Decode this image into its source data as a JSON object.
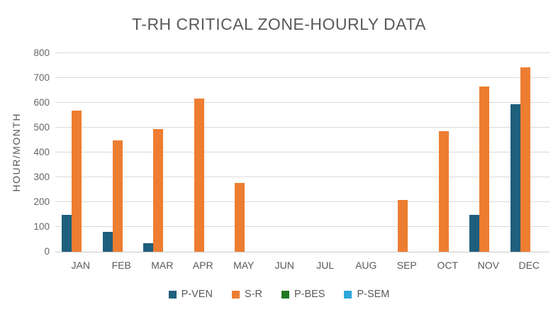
{
  "title": "T-RH CRITICAL ZONE-HOURLY DATA",
  "chart_data": {
    "type": "bar",
    "title": "T-RH CRITICAL ZONE-HOURLY DATA",
    "categories": [
      "JAN",
      "FEB",
      "MAR",
      "APR",
      "MAY",
      "JUN",
      "JUL",
      "AUG",
      "SEP",
      "OCT",
      "NOV",
      "DEC"
    ],
    "series": [
      {
        "name": "P-VEN",
        "color": "#1e5f7c",
        "values": [
          150,
          80,
          35,
          0,
          0,
          0,
          0,
          0,
          0,
          0,
          148,
          595
        ]
      },
      {
        "name": "S-R",
        "color": "#ed7d31",
        "values": [
          570,
          450,
          493,
          618,
          277,
          0,
          0,
          0,
          209,
          486,
          667,
          742
        ]
      },
      {
        "name": "P-BES",
        "color": "#217821",
        "values": [
          0,
          0,
          0,
          0,
          0,
          0,
          0,
          0,
          0,
          0,
          0,
          0
        ]
      },
      {
        "name": "P-SEM",
        "color": "#2ea7db",
        "values": [
          0,
          0,
          0,
          0,
          0,
          0,
          0,
          0,
          0,
          0,
          0,
          0
        ]
      }
    ],
    "xlabel": "",
    "ylabel": "HOUR/MONTH",
    "ylim": [
      0,
      800
    ],
    "ytick_step": 100,
    "grid": true,
    "legend_position": "bottom"
  },
  "colors": {
    "gridline": "#d9d9d9",
    "axis_line": "#c9c9c9",
    "title_text": "#595959",
    "tick_text": "#666666",
    "background": "#ffffff"
  }
}
